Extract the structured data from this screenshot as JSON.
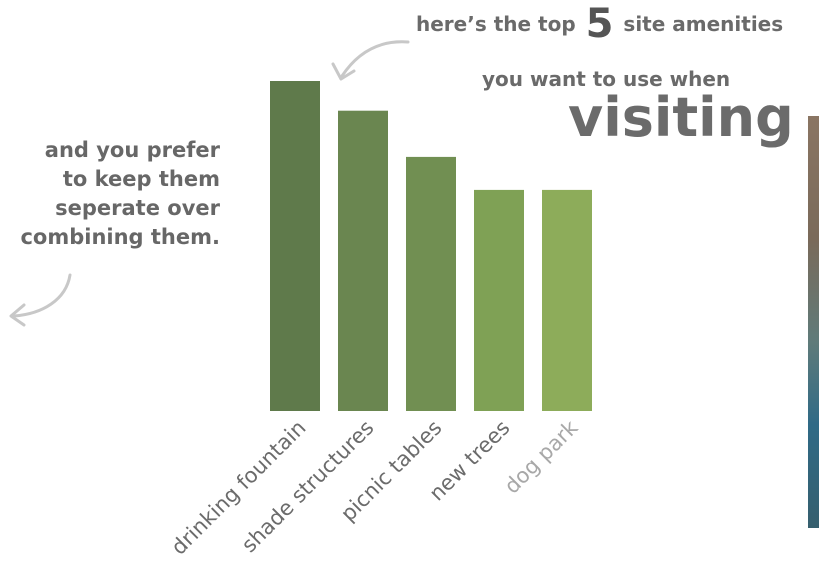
{
  "headline": {
    "pre": "here’s the top",
    "number": "5",
    "post": "site amenities",
    "line2": "you want to use when",
    "line3": "visiting"
  },
  "side_note": {
    "lines": [
      "and you prefer",
      "to keep them",
      "seperate over",
      "combining them."
    ]
  },
  "colors": {
    "text": "#666666",
    "arrow": "#c8c8c8",
    "bars": [
      "#5f7a4b",
      "#6a8650",
      "#718f52",
      "#7fa155",
      "#8dac5a"
    ]
  },
  "chart_data": {
    "type": "bar",
    "categories": [
      "drinking fountain",
      "shade structures",
      "picnic tables",
      "new trees",
      "dog park"
    ],
    "values": [
      100,
      91,
      77,
      67,
      67
    ],
    "ylim": [
      0,
      100
    ],
    "grid": false,
    "legend": "none"
  }
}
